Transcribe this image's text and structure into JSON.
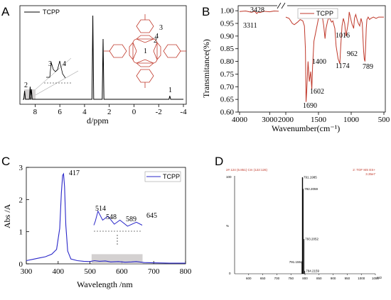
{
  "colors": {
    "a_line": "#000000",
    "b_line": "#c0392b",
    "c_line": "#2a27c9",
    "d_line": "#000000",
    "mol": "#c0392b",
    "d_header": "#c0392b"
  },
  "chart_data": [
    {
      "panel": "A",
      "type": "line",
      "xlabel": "d/ppm",
      "ylabel": "",
      "xlim": [
        9,
        -4
      ],
      "xticks": [
        8,
        6,
        4,
        2,
        0,
        -2,
        -4
      ],
      "xtick_labels": [
        "8",
        "6",
        "4",
        "2",
        "0",
        "-2",
        "-4"
      ],
      "legend": "TCPP",
      "peaks": [
        {
          "x": 8.85,
          "h": 0.1,
          "label": "2"
        },
        {
          "x": 8.4,
          "h": 0.15,
          "label": "3"
        },
        {
          "x": 8.3,
          "h": 0.12,
          "label": "4"
        },
        {
          "x": 3.33,
          "h": 1.0,
          "label": ""
        },
        {
          "x": 2.5,
          "h": 0.72,
          "label": ""
        },
        {
          "x": -2.9,
          "h": 0.04,
          "label": "1"
        }
      ],
      "inset_labels": [
        "3",
        "4"
      ],
      "molecule_labels": [
        "1",
        "2",
        "3",
        "4"
      ]
    },
    {
      "panel": "B",
      "type": "line",
      "xlabel": "Wavenumber(cm⁻¹)",
      "ylabel": "Transmitance(%)",
      "ylim": [
        0.6,
        1.02
      ],
      "yticks": [
        0.6,
        0.65,
        0.7,
        0.75,
        0.8,
        0.85,
        0.9,
        0.95,
        1.0
      ],
      "ytick_labels": [
        "0.60",
        "0.65",
        "0.70",
        "0.75",
        "0.80",
        "0.85",
        "0.90",
        "0.95",
        "1.00"
      ],
      "xticks": [
        4000,
        3000,
        2000,
        1500,
        1000,
        500
      ],
      "xtick_labels": [
        "4000",
        "3000",
        "2000",
        "1500",
        "1000",
        "500"
      ],
      "legend": "TCPP",
      "annotations": [
        "3428",
        "3311",
        "1690",
        "1602",
        "1400",
        "1174",
        "1016",
        "962",
        "789"
      ],
      "seg1": {
        "x": [
          4000,
          3800,
          3600,
          3500,
          3428,
          3380,
          3311,
          3200,
          3000,
          2850,
          2700
        ],
        "y": [
          0.997,
          0.999,
          0.994,
          0.998,
          0.989,
          0.995,
          0.993,
          0.998,
          0.996,
          0.999,
          0.998
        ]
      },
      "seg2": {
        "x": [
          2000,
          1950,
          1900,
          1870,
          1820,
          1780,
          1740,
          1715,
          1700,
          1690,
          1680,
          1660,
          1640,
          1620,
          1610,
          1602,
          1590,
          1570,
          1530,
          1500,
          1470,
          1440,
          1420,
          1400,
          1385,
          1360,
          1340,
          1320,
          1300,
          1280,
          1250,
          1230,
          1200,
          1185,
          1174,
          1160,
          1140,
          1120,
          1100,
          1080,
          1060,
          1040,
          1030,
          1016,
          1000,
          985,
          975,
          962,
          950,
          930,
          910,
          890,
          870,
          850,
          830,
          810,
          800,
          789,
          780,
          770,
          760,
          740,
          720,
          700,
          660,
          620,
          580,
          540,
          500
        ],
        "y": [
          0.975,
          0.97,
          0.95,
          0.945,
          0.955,
          0.965,
          0.96,
          0.94,
          0.85,
          0.64,
          0.68,
          0.8,
          0.72,
          0.76,
          0.72,
          0.69,
          0.78,
          0.88,
          0.93,
          0.97,
          0.995,
          0.975,
          0.94,
          0.89,
          0.93,
          0.96,
          0.975,
          0.965,
          0.955,
          0.96,
          0.93,
          0.86,
          0.81,
          0.8,
          0.79,
          0.86,
          0.94,
          0.97,
          0.95,
          0.9,
          0.93,
          0.96,
          0.995,
          0.98,
          0.96,
          0.945,
          0.94,
          0.93,
          0.97,
          0.985,
          0.965,
          0.95,
          0.94,
          0.97,
          0.95,
          0.84,
          0.81,
          0.8,
          0.85,
          0.93,
          0.965,
          0.975,
          0.965,
          0.97,
          0.975,
          0.97,
          0.975,
          0.975,
          0.975
        ]
      }
    },
    {
      "panel": "C",
      "type": "line",
      "xlabel": "Wavelength /nm",
      "ylabel": "Abs /A",
      "xlim": [
        300,
        800
      ],
      "xticks": [
        300,
        400,
        500,
        600,
        700,
        800
      ],
      "xtick_labels": [
        "300",
        "400",
        "500",
        "600",
        "700",
        "800"
      ],
      "ylim": [
        0,
        3
      ],
      "yticks": [
        0,
        1,
        2,
        3
      ],
      "ytick_labels": [
        "0",
        "1",
        "2",
        "3"
      ],
      "legend": "TCPP",
      "annotations": [
        "417",
        "514",
        "548",
        "589",
        "645"
      ],
      "x": [
        300,
        320,
        340,
        360,
        380,
        395,
        405,
        410,
        414,
        417,
        420,
        424,
        430,
        440,
        460,
        480,
        500,
        514,
        530,
        548,
        565,
        589,
        610,
        630,
        645,
        670,
        700,
        750,
        800
      ],
      "y": [
        0.1,
        0.14,
        0.18,
        0.22,
        0.3,
        0.45,
        1.1,
        2.2,
        2.75,
        2.8,
        2.4,
        1.2,
        0.4,
        0.15,
        0.1,
        0.08,
        0.07,
        0.1,
        0.08,
        0.09,
        0.06,
        0.07,
        0.05,
        0.06,
        0.07,
        0.04,
        0.03,
        0.02,
        0.02
      ],
      "inset_x": [
        514,
        548,
        589,
        645
      ],
      "inset_y": [
        1.0,
        0.75,
        0.55,
        0.45
      ]
    },
    {
      "panel": "D",
      "type": "bar",
      "header_left": "2# 124 (6.851) Cm (122:126)",
      "header_right_1": "2: TOF MS ES+",
      "header_right_2": "3.35e7",
      "ylabel": "%",
      "ytick_labels": [
        "100",
        "0"
      ],
      "xlim": [
        550,
        1050
      ],
      "xticks": [
        600,
        650,
        700,
        750,
        800,
        850,
        900,
        950,
        1000,
        1050
      ],
      "xtick_labels": [
        "600",
        "650",
        "700",
        "750",
        "800",
        "850",
        "900",
        "950",
        "1000",
        "1050"
      ],
      "x_unit": "m/z",
      "peaks": [
        {
          "mz": 791.1985,
          "rel": 100,
          "label": "791.1985"
        },
        {
          "mz": 792.2059,
          "rel": 88,
          "label": "792.2059"
        },
        {
          "mz": 793.2052,
          "rel": 36,
          "label": "793.2052"
        },
        {
          "mz": 791.1552,
          "rel": 12,
          "label": "791.1552"
        },
        {
          "mz": 794.2159,
          "rel": 3,
          "label": "794.2159"
        }
      ]
    }
  ],
  "panel_letters": [
    "A",
    "B",
    "C",
    "D"
  ]
}
